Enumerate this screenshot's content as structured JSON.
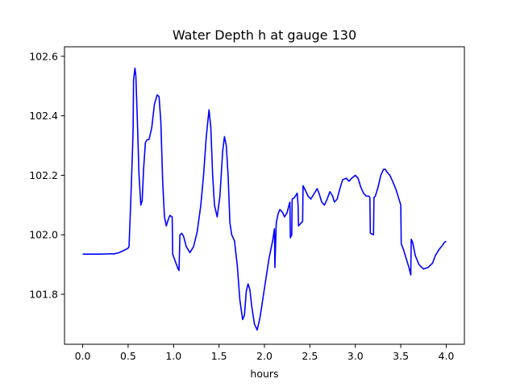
{
  "chart_data": {
    "type": "line",
    "title": "Water Depth h at gauge 130",
    "xlabel": "hours",
    "ylabel": "",
    "xlim": [
      -0.2,
      4.2
    ],
    "ylim": [
      101.632,
      102.632
    ],
    "xticks": [
      0.0,
      0.5,
      1.0,
      1.5,
      2.0,
      2.5,
      3.0,
      3.5,
      4.0
    ],
    "xtick_labels": [
      "0.0",
      "0.5",
      "1.0",
      "1.5",
      "2.0",
      "2.5",
      "3.0",
      "3.5",
      "4.0"
    ],
    "yticks": [
      101.8,
      102.0,
      102.2,
      102.4,
      102.6
    ],
    "ytick_labels": [
      "101.8",
      "102.0",
      "102.2",
      "102.4",
      "102.6"
    ],
    "grid": false,
    "legend": false,
    "series": [
      {
        "color": "#0000ff",
        "points": [
          [
            0.0,
            101.935
          ],
          [
            0.1,
            101.935
          ],
          [
            0.2,
            101.935
          ],
          [
            0.3,
            101.936
          ],
          [
            0.35,
            101.936
          ],
          [
            0.4,
            101.94
          ],
          [
            0.45,
            101.947
          ],
          [
            0.5,
            101.955
          ],
          [
            0.51,
            101.96
          ],
          [
            0.53,
            102.12
          ],
          [
            0.55,
            102.3
          ],
          [
            0.555,
            102.36
          ],
          [
            0.56,
            102.52
          ],
          [
            0.575,
            102.56
          ],
          [
            0.585,
            102.535
          ],
          [
            0.6,
            102.4
          ],
          [
            0.62,
            102.2
          ],
          [
            0.64,
            102.1
          ],
          [
            0.655,
            102.115
          ],
          [
            0.67,
            102.22
          ],
          [
            0.69,
            102.31
          ],
          [
            0.71,
            102.32
          ],
          [
            0.73,
            102.32
          ],
          [
            0.76,
            102.36
          ],
          [
            0.79,
            102.44
          ],
          [
            0.82,
            102.47
          ],
          [
            0.84,
            102.465
          ],
          [
            0.86,
            102.38
          ],
          [
            0.88,
            102.18
          ],
          [
            0.9,
            102.06
          ],
          [
            0.92,
            102.03
          ],
          [
            0.94,
            102.05
          ],
          [
            0.96,
            102.065
          ],
          [
            0.985,
            102.06
          ],
          [
            0.99,
            101.935
          ],
          [
            1.02,
            101.91
          ],
          [
            1.05,
            101.885
          ],
          [
            1.06,
            101.88
          ],
          [
            1.07,
            102.0
          ],
          [
            1.09,
            102.005
          ],
          [
            1.11,
            101.995
          ],
          [
            1.14,
            101.96
          ],
          [
            1.18,
            101.94
          ],
          [
            1.22,
            101.96
          ],
          [
            1.26,
            102.01
          ],
          [
            1.3,
            102.1
          ],
          [
            1.33,
            102.2
          ],
          [
            1.36,
            102.33
          ],
          [
            1.39,
            102.42
          ],
          [
            1.41,
            102.36
          ],
          [
            1.43,
            102.2
          ],
          [
            1.45,
            102.1
          ],
          [
            1.48,
            102.06
          ],
          [
            1.51,
            102.13
          ],
          [
            1.54,
            102.28
          ],
          [
            1.56,
            102.33
          ],
          [
            1.58,
            102.3
          ],
          [
            1.6,
            102.2
          ],
          [
            1.62,
            102.04
          ],
          [
            1.64,
            102.0
          ],
          [
            1.67,
            101.98
          ],
          [
            1.7,
            101.9
          ],
          [
            1.73,
            101.78
          ],
          [
            1.76,
            101.715
          ],
          [
            1.78,
            101.73
          ],
          [
            1.8,
            101.81
          ],
          [
            1.82,
            101.835
          ],
          [
            1.84,
            101.815
          ],
          [
            1.86,
            101.76
          ],
          [
            1.89,
            101.7
          ],
          [
            1.92,
            101.68
          ],
          [
            1.95,
            101.72
          ],
          [
            1.98,
            101.78
          ],
          [
            2.02,
            101.86
          ],
          [
            2.05,
            101.92
          ],
          [
            2.09,
            101.98
          ],
          [
            2.1,
            102.0
          ],
          [
            2.11,
            102.02
          ],
          [
            2.115,
            101.89
          ],
          [
            2.13,
            102.04
          ],
          [
            2.15,
            102.07
          ],
          [
            2.17,
            102.085
          ],
          [
            2.2,
            102.075
          ],
          [
            2.22,
            102.06
          ],
          [
            2.25,
            102.075
          ],
          [
            2.27,
            102.1
          ],
          [
            2.28,
            102.11
          ],
          [
            2.285,
            101.99
          ],
          [
            2.3,
            102.0
          ],
          [
            2.305,
            102.12
          ],
          [
            2.33,
            102.125
          ],
          [
            2.36,
            102.14
          ],
          [
            2.37,
            102.1
          ],
          [
            2.375,
            102.03
          ],
          [
            2.42,
            102.045
          ],
          [
            2.425,
            102.165
          ],
          [
            2.45,
            102.15
          ],
          [
            2.48,
            102.13
          ],
          [
            2.51,
            102.12
          ],
          [
            2.55,
            102.14
          ],
          [
            2.58,
            102.155
          ],
          [
            2.6,
            102.14
          ],
          [
            2.63,
            102.11
          ],
          [
            2.66,
            102.1
          ],
          [
            2.69,
            102.12
          ],
          [
            2.72,
            102.145
          ],
          [
            2.75,
            102.13
          ],
          [
            2.77,
            102.11
          ],
          [
            2.8,
            102.12
          ],
          [
            2.83,
            102.155
          ],
          [
            2.86,
            102.185
          ],
          [
            2.9,
            102.19
          ],
          [
            2.93,
            102.18
          ],
          [
            2.96,
            102.19
          ],
          [
            3.0,
            102.2
          ],
          [
            3.03,
            102.19
          ],
          [
            3.06,
            102.16
          ],
          [
            3.09,
            102.14
          ],
          [
            3.12,
            102.13
          ],
          [
            3.15,
            102.13
          ],
          [
            3.16,
            102.125
          ],
          [
            3.165,
            102.005
          ],
          [
            3.18,
            102.003
          ],
          [
            3.2,
            102.0
          ],
          [
            3.205,
            102.125
          ],
          [
            3.22,
            102.13
          ],
          [
            3.25,
            102.16
          ],
          [
            3.28,
            102.2
          ],
          [
            3.31,
            102.22
          ],
          [
            3.33,
            102.22
          ],
          [
            3.35,
            102.21
          ],
          [
            3.38,
            102.2
          ],
          [
            3.41,
            102.18
          ],
          [
            3.45,
            102.15
          ],
          [
            3.48,
            102.12
          ],
          [
            3.5,
            102.1
          ],
          [
            3.505,
            101.97
          ],
          [
            3.53,
            101.95
          ],
          [
            3.56,
            101.92
          ],
          [
            3.59,
            101.89
          ],
          [
            3.61,
            101.865
          ],
          [
            3.615,
            101.985
          ],
          [
            3.63,
            101.975
          ],
          [
            3.66,
            101.93
          ],
          [
            3.7,
            101.9
          ],
          [
            3.75,
            101.885
          ],
          [
            3.8,
            101.89
          ],
          [
            3.85,
            101.905
          ],
          [
            3.88,
            101.93
          ],
          [
            3.92,
            101.95
          ],
          [
            3.96,
            101.965
          ],
          [
            3.98,
            101.975
          ],
          [
            4.0,
            101.978
          ]
        ]
      }
    ]
  }
}
